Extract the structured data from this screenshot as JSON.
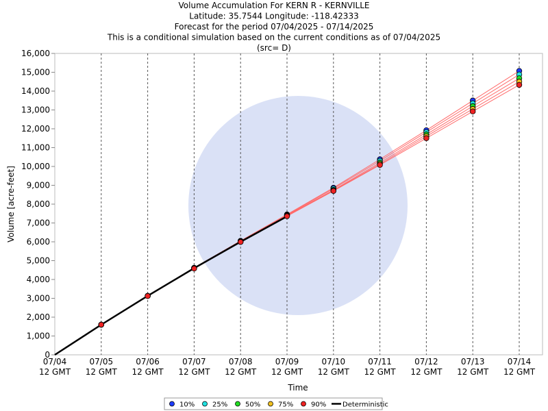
{
  "chart_data": {
    "type": "line",
    "title": [
      "Volume Accumulation For KERN R - KERNVILLE",
      "Latitude: 35.7544 Longitude: -118.42333",
      "Forecast for the period 07/04/2025 - 07/14/2025",
      "This is a conditional simulation based on the current conditions as of 07/04/2025",
      "(src= D)"
    ],
    "xlabel": "Time",
    "ylabel": "Volume [acre-feet]",
    "categories": [
      [
        "07/04",
        "12 GMT"
      ],
      [
        "07/05",
        "12 GMT"
      ],
      [
        "07/06",
        "12 GMT"
      ],
      [
        "07/07",
        "12 GMT"
      ],
      [
        "07/08",
        "12 GMT"
      ],
      [
        "07/09",
        "12 GMT"
      ],
      [
        "07/10",
        "12 GMT"
      ],
      [
        "07/11",
        "12 GMT"
      ],
      [
        "07/12",
        "12 GMT"
      ],
      [
        "07/13",
        "12 GMT"
      ],
      [
        "07/14",
        "12 GMT"
      ]
    ],
    "trace_color": "#ff6a6a",
    "series": [
      {
        "name": "10%",
        "color": "#1e3cff",
        "values": [
          null,
          1600,
          3130,
          4620,
          6050,
          7450,
          8870,
          10380,
          11920,
          13500,
          15070
        ]
      },
      {
        "name": "25%",
        "color": "#22e0e0",
        "values": [
          null,
          1600,
          3130,
          4610,
          6030,
          7420,
          8820,
          10300,
          11820,
          13350,
          14880
        ]
      },
      {
        "name": "50%",
        "color": "#22dd22",
        "values": [
          null,
          1600,
          3130,
          4600,
          6010,
          7400,
          8750,
          10200,
          11700,
          13200,
          14680
        ]
      },
      {
        "name": "75%",
        "color": "#f0c020",
        "values": [
          null,
          1600,
          3130,
          4590,
          6000,
          7380,
          8720,
          10130,
          11600,
          13050,
          14500
        ]
      },
      {
        "name": "90%",
        "color": "#ee2222",
        "values": [
          null,
          1600,
          3120,
          4580,
          5990,
          7360,
          8700,
          10080,
          11500,
          12920,
          14330
        ]
      },
      {
        "name": "Deterministic",
        "color": "#000000",
        "values": [
          0,
          1600,
          3130,
          4600,
          6000,
          7350,
          null,
          null,
          null,
          null,
          null
        ]
      }
    ],
    "ylim": [
      0,
      16000
    ],
    "yticks": [
      0,
      {
        "value": 1000,
        "label": "1,000"
      },
      {
        "value": 2000,
        "label": "2,000"
      },
      {
        "value": 3000,
        "label": "3,000"
      },
      {
        "value": 4000,
        "label": "4,000"
      },
      {
        "value": 5000,
        "label": "5,000"
      },
      {
        "value": 6000,
        "label": "6,000"
      },
      {
        "value": 7000,
        "label": "7,000"
      },
      {
        "value": 8000,
        "label": "8,000"
      },
      {
        "value": 9000,
        "label": "9,000"
      },
      {
        "value": 10000,
        "label": "10,000"
      },
      {
        "value": 11000,
        "label": "11,000"
      },
      {
        "value": 12000,
        "label": "12,000"
      },
      {
        "value": 13000,
        "label": "13,000"
      },
      {
        "value": 14000,
        "label": "14,000"
      },
      {
        "value": 15000,
        "label": "15,000"
      },
      {
        "value": 16000,
        "label": "16,000"
      }
    ],
    "grid": "x",
    "legend": "bottom"
  }
}
